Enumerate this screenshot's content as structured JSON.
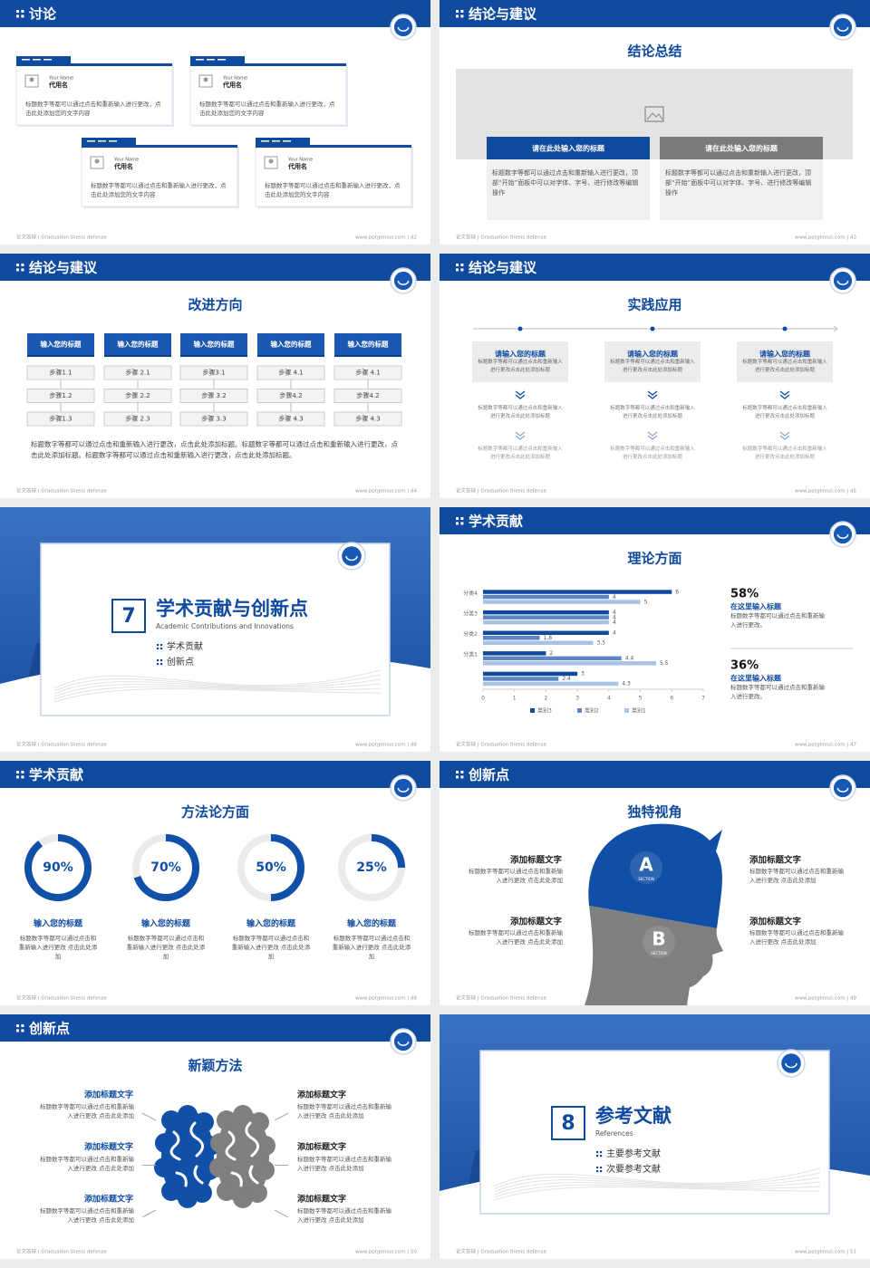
{
  "footer_left": "论文答辩 | Graduation thesis defense",
  "slides": [
    {
      "kind": "cards",
      "header": "讨论",
      "footer": "www.pptgenius.com | 42",
      "cards": [
        {
          "name_en": "Your Name",
          "name": "代用名",
          "text": "标题数字等都可以通过点击和重新输入进行更改，点击此处添加您的文字内容"
        },
        {
          "name_en": "Your Name",
          "name": "代用名",
          "text": "标题数字等都可以通过点击和重新输入进行更改，点击此处添加您的文字内容"
        },
        {
          "name_en": "Your Name",
          "name": "代用名",
          "text": "标题数字等都可以通过点击和重新输入进行更改，点击此处添加您的文字内容"
        },
        {
          "name_en": "Your Name",
          "name": "代用名",
          "text": "标题数字等都可以通过点击和重新输入进行更改，点击此处添加您的文字内容"
        }
      ]
    },
    {
      "kind": "conclusion",
      "header": "结论与建议",
      "title": "结论总结",
      "footer": "www.pptgenius.com | 43",
      "boxes": [
        {
          "title": "请在此处输入您的标题",
          "text": "标题数字等都可以通过点击和重新输入进行更改，顶部“开始”面板中可以对字体、字号、进行修改等编辑操作"
        },
        {
          "title": "请在此处输入您的标题",
          "text": "标题数字等都可以通过点击和重新输入进行更改，顶部“开始”面板中可以对字体、字号、进行修改等编辑操作"
        }
      ]
    },
    {
      "kind": "steps",
      "header": "结论与建议",
      "title": "改进方向",
      "footer": "www.pptgenius.com | 44",
      "columns": [
        {
          "title": "输入您的标题",
          "steps": [
            "步骤1.1",
            "步骤1.2",
            "步骤1.3"
          ]
        },
        {
          "title": "输入您的标题",
          "steps": [
            "步骤 2.1",
            "步骤 2.2",
            "步骤 2.3"
          ]
        },
        {
          "title": "输入您的标题",
          "steps": [
            "步骤3.1",
            "步骤 3.2",
            "步骤 3.3"
          ]
        },
        {
          "title": "输入您的标题",
          "steps": [
            "步骤 4.1",
            "步骤4.2",
            "步骤 4.3"
          ]
        },
        {
          "title": "输入您的标题",
          "steps": [
            "步骤 4.1",
            "步骤4.2",
            "步骤 4.3"
          ]
        }
      ],
      "paragraph": "标题数字等都可以通过点击和重新输入进行更改，点击此处添加标题。标题数字等都可以通过点击和重新输入进行更改，点击此处添加标题。标题数字等都可以通过点击和重新输入进行更改，点击此处添加标题。"
    },
    {
      "kind": "practice",
      "header": "结论与建议",
      "title": "实践应用",
      "footer": "www.pptgenius.com | 45",
      "columns": [
        {
          "title": "请输入您的标题",
          "texts": [
            "标题数字等都可以通过点击和重新输入进行更改点击此处添加标题",
            "标题数字等都可以通过点击和重新输入进行更改点击此处添加标题",
            "标题数字等都可以通过点击和重新输入进行更改点击此处添加标题"
          ]
        },
        {
          "title": "请输入您的标题",
          "texts": [
            "标题数字等都可以通过点击和重新输入进行更改点击此处添加标题",
            "标题数字等都可以通过点击和重新输入进行更改点击此处添加标题",
            "标题数字等都可以通过点击和重新输入进行更改点击此处添加标题"
          ]
        },
        {
          "title": "请输入您的标题",
          "texts": [
            "标题数字等都可以通过点击和重新输入进行更改点击此处添加标题",
            "标题数字等都可以通过点击和重新输入进行更改点击此处添加标题",
            "标题数字等都可以通过点击和重新输入进行更改点击此处添加标题"
          ]
        }
      ]
    },
    {
      "kind": "section",
      "number": "7",
      "title": "学术贡献与创新点",
      "subtitle": "Academic Contributions and Innovations",
      "items": [
        "学术贡献",
        "创新点"
      ],
      "footer": "www.pptgenius.com | 46"
    },
    {
      "kind": "barchart",
      "header": "学术贡献",
      "title": "理论方面",
      "footer": "www.pptgenius.com | 47",
      "chart": {
        "type": "bar",
        "orientation": "horizontal",
        "categories": [
          null,
          "分类1",
          "分类2",
          "分类3",
          "分类4"
        ],
        "series": [
          {
            "name": "类别3",
            "color": "#0f4a9f",
            "values": [
              3,
              2,
              4,
              4,
              6
            ]
          },
          {
            "name": "类别2",
            "color": "#5b86c6",
            "values": [
              2.4,
              4.4,
              1.8,
              4,
              4
            ]
          },
          {
            "name": "类别1",
            "color": "#a9c1e4",
            "values": [
              4.3,
              5.5,
              3.5,
              4,
              5
            ]
          }
        ],
        "xlim": [
          0,
          7
        ],
        "xticks": [
          0,
          1,
          2,
          3,
          4,
          5,
          6,
          7
        ]
      },
      "stats": [
        {
          "value": "58%",
          "title": "在这里输入标题",
          "text": "标题数字等都可以通过点击和重新输入进行更改。"
        },
        {
          "value": "36%",
          "title": "在这里输入标题",
          "text": "标题数字等都可以通过点击和重新输入进行更改。"
        }
      ]
    },
    {
      "kind": "donuts",
      "header": "学术贡献",
      "title": "方法论方面",
      "footer": "www.pptgenius.com | 48",
      "items": [
        {
          "value": 90,
          "label": "90%",
          "title": "输入您的标题",
          "text": "标题数字等都可以通过点击和重新输入进行更改 点击此处添加"
        },
        {
          "value": 70,
          "label": "70%",
          "title": "输入您的标题",
          "text": "标题数字等都可以通过点击和重新输入进行更改 点击此处添加"
        },
        {
          "value": 50,
          "label": "50%",
          "title": "输入您的标题",
          "text": "标题数字等都可以通过点击和重新输入进行更改 点击此处添加"
        },
        {
          "value": 25,
          "label": "25%",
          "title": "输入您的标题",
          "text": "标题数字等都可以通过点击和重新输入进行更改 点击此处添加"
        }
      ]
    },
    {
      "kind": "head",
      "header": "创新点",
      "title": "独特视角",
      "footer": "www.pptgenius.com | 49",
      "letters": [
        {
          "letter": "A",
          "sub": "SECTION"
        },
        {
          "letter": "B",
          "sub": "SECTION"
        }
      ],
      "items": [
        {
          "title": "添加标题文字",
          "text": "标题数字等都可以通过点击和重新输入进行更改 点击此处添加"
        },
        {
          "title": "添加标题文字",
          "text": "标题数字等都可以通过点击和重新输入进行更改 点击此处添加"
        },
        {
          "title": "添加标题文字",
          "text": "标题数字等都可以通过点击和重新输入进行更改 点击此处添加"
        },
        {
          "title": "添加标题文字",
          "text": "标题数字等都可以通过点击和重新输入进行更改 点击此处添加"
        }
      ]
    },
    {
      "kind": "brain",
      "header": "创新点",
      "title": "新颖方法",
      "footer": "www.pptgenius.com | 50",
      "items": [
        {
          "title": "添加标题文字",
          "text": "标题数字等都可以通过点击和重新输入进行更改 点击此处添加"
        },
        {
          "title": "添加标题文字",
          "text": "标题数字等都可以通过点击和重新输入进行更改 点击此处添加"
        },
        {
          "title": "添加标题文字",
          "text": "标题数字等都可以通过点击和重新输入进行更改 点击此处添加"
        },
        {
          "title": "添加标题文字",
          "text": "标题数字等都可以通过点击和重新输入进行更改 点击此处添加"
        },
        {
          "title": "添加标题文字",
          "text": "标题数字等都可以通过点击和重新输入进行更改 点击此处添加"
        },
        {
          "title": "添加标题文字",
          "text": "标题数字等都可以通过点击和重新输入进行更改 点击此处添加"
        }
      ]
    },
    {
      "kind": "section",
      "number": "8",
      "title": "参考文献",
      "subtitle": "References",
      "items": [
        "主要参考文献",
        "次要参考文献"
      ],
      "footer": "www.pptgenius.com | 51"
    }
  ]
}
